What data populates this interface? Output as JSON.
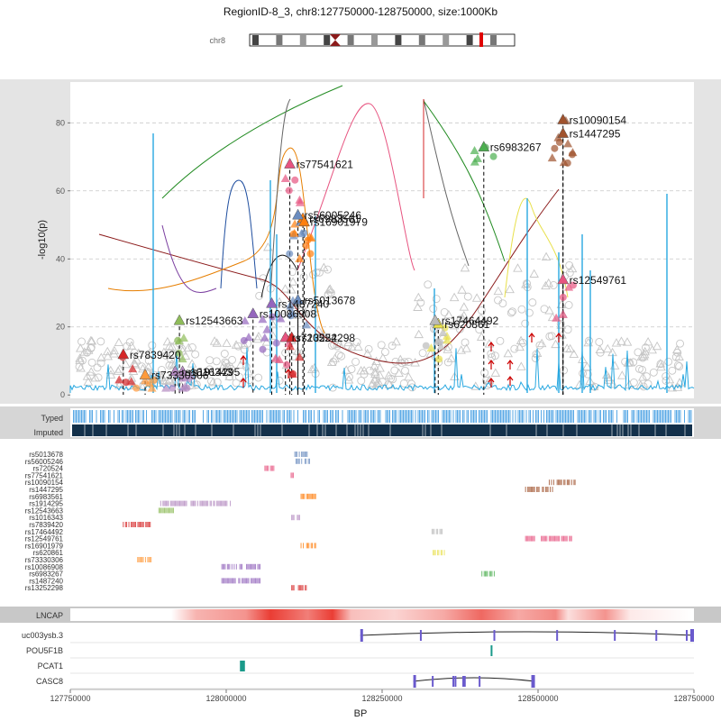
{
  "header": {
    "title": "RegionID-8_3, chr8:127750000-128750000, size:1000Kb",
    "ideogram_label": "chr8"
  },
  "chart_data": {
    "type": "scatter",
    "xlabel": "BP",
    "ylabel": "-log10(p)",
    "xlim": [
      127750000,
      128750000
    ],
    "ylim": [
      -1,
      92
    ],
    "x_ticks": [
      127750000,
      128000000,
      128250000,
      128500000,
      128750000
    ],
    "x_tick_labels": [
      "127750000",
      "128000000",
      "128250000",
      "128500000",
      "128750000"
    ],
    "y_ticks": [
      0,
      20,
      40,
      60,
      80
    ],
    "y_tick_labels": [
      "0",
      "20",
      "40",
      "60",
      "80"
    ],
    "grid": "horizontal dashed",
    "tracks": {
      "snp_types": [
        "Typed",
        "Imputed"
      ],
      "ld_rows": [
        "rs5013678",
        "rs56005246",
        "rs720524",
        "rs77541621",
        "rs10090154",
        "rs1447295",
        "rs6983561",
        "rs1914295",
        "rs12543663",
        "rs1016343",
        "rs7839420",
        "rs17464492",
        "rs12549761",
        "rs16901979",
        "rs620861",
        "rs73330306",
        "rs10086908",
        "rs6983267",
        "rs1487240",
        "rs13252298"
      ],
      "cell_line": "LNCAP",
      "genes": [
        "uc003ysb.3",
        "POU5F1B",
        "PCAT1",
        "CASC8"
      ]
    },
    "lead_snps": [
      {
        "name": "rs10090154",
        "bp": 128540000,
        "p": 81,
        "color": "#a0522d"
      },
      {
        "name": "rs1447295",
        "bp": 128540000,
        "p": 77,
        "color": "#a0522d"
      },
      {
        "name": "rs6983267",
        "bp": 128413000,
        "p": 73,
        "color": "#4caf50"
      },
      {
        "name": "rs77541621",
        "bp": 128102000,
        "p": 68,
        "color": "#e75480"
      },
      {
        "name": "rs6983561",
        "bp": 128123000,
        "p": 52,
        "color": "#ff7f0e"
      },
      {
        "name": "rs56005246",
        "bp": 128115000,
        "p": 53,
        "color": "#6a8cbf"
      },
      {
        "name": "rs16901979",
        "bp": 128125000,
        "p": 51,
        "color": "#ff7f0e"
      },
      {
        "name": "rs12549761",
        "bp": 128540000,
        "p": 34,
        "color": "#e75480"
      },
      {
        "name": "rs1487240",
        "bp": 128073000,
        "p": 27,
        "color": "#9467bd"
      },
      {
        "name": "rs5013678",
        "bp": 128115000,
        "p": 28,
        "color": "#6a8cbf"
      },
      {
        "name": "rs10086908",
        "bp": 128043000,
        "p": 24,
        "color": "#9467bd"
      },
      {
        "name": "rs12543663",
        "bp": 127925000,
        "p": 22,
        "color": "#8fbc5a"
      },
      {
        "name": "rs620861",
        "bp": 128340000,
        "p": 21,
        "color": "#e8e04a"
      },
      {
        "name": "rs17464492",
        "bp": 128335000,
        "p": 22,
        "color": "#bbbbbb"
      },
      {
        "name": "rs720524",
        "bp": 128095000,
        "p": 17,
        "color": "#e75480"
      },
      {
        "name": "rs13252298",
        "bp": 128105000,
        "p": 17,
        "color": "#d62728"
      },
      {
        "name": "rs7839420",
        "bp": 127835000,
        "p": 12,
        "color": "#d62728"
      },
      {
        "name": "rs1914295",
        "bp": 127930000,
        "p": 7,
        "color": "#b48ac0"
      },
      {
        "name": "rs73330306",
        "bp": 127870000,
        "p": 6,
        "color": "#ff9a3c"
      },
      {
        "name": "rs1016343",
        "bp": 127918000,
        "p": 7,
        "color": "#b48ac0"
      }
    ]
  }
}
